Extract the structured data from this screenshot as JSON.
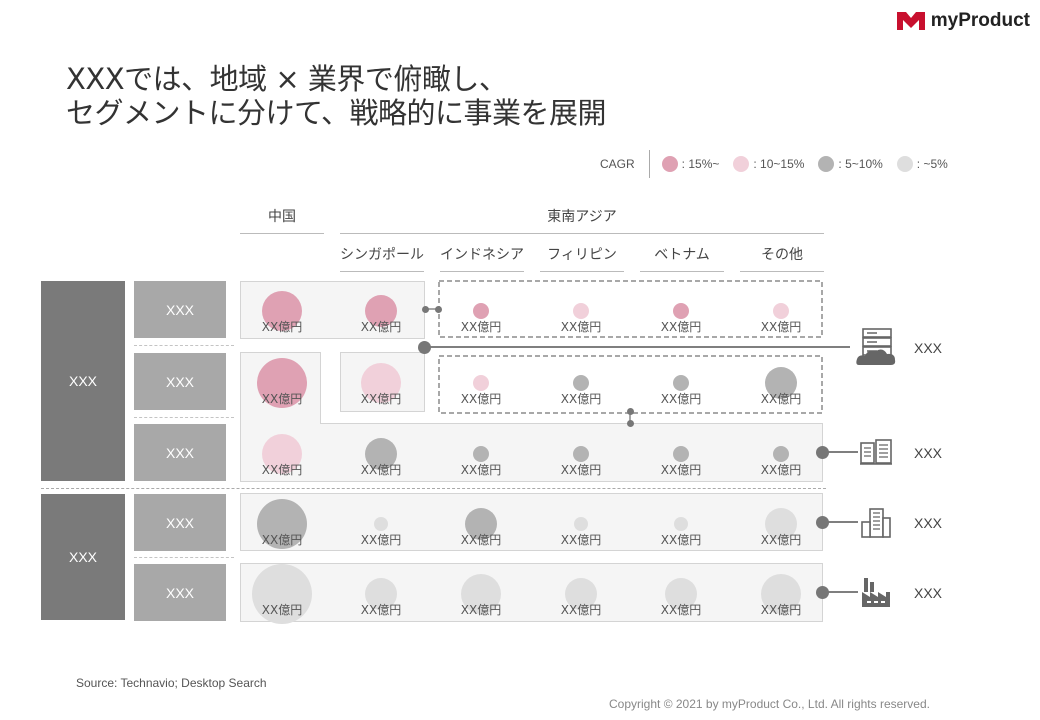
{
  "brand": {
    "name": "myProduct",
    "color": "#c8102e"
  },
  "title": {
    "line1": "XXXでは、地域 × 業界で俯瞰し、",
    "line2": "セグメントに分けて、戦略的に事業を展開"
  },
  "legend": {
    "label": "CAGR",
    "items": [
      {
        "text": ": 15%~",
        "color": "#dfa1b3"
      },
      {
        "text": ": 10~15%",
        "color": "#f1d0da"
      },
      {
        "text": ": 5~10%",
        "color": "#b3b3b3"
      },
      {
        "text": ": ~5%",
        "color": "#dedede"
      }
    ]
  },
  "headers": {
    "china": "中国",
    "sea": "東南アジア",
    "countries": [
      "シンガポール",
      "インドネシア",
      "フィリピン",
      "ベトナム",
      "その他"
    ]
  },
  "groups": [
    {
      "label": "XXX"
    },
    {
      "label": "XXX"
    }
  ],
  "rows": [
    {
      "label": "XXX",
      "cells": [
        {
          "text": "XX億円",
          "size": "L",
          "tier": "15%~"
        },
        {
          "text": "XX億円",
          "size": "M",
          "tier": "15%~"
        },
        {
          "text": "XX億円",
          "size": "S",
          "tier": "15%~"
        },
        {
          "text": "XX億円",
          "size": "S",
          "tier": "10~15%"
        },
        {
          "text": "XX億円",
          "size": "S",
          "tier": "15%~"
        },
        {
          "text": "XX億円",
          "size": "S",
          "tier": "10~15%"
        }
      ]
    },
    {
      "label": "XXX",
      "cells": [
        {
          "text": "XX億円",
          "size": "XL",
          "tier": "15%~"
        },
        {
          "text": "XX億円",
          "size": "L",
          "tier": "10~15%"
        },
        {
          "text": "XX億円",
          "size": "S",
          "tier": "10~15%"
        },
        {
          "text": "XX億円",
          "size": "S",
          "tier": "5~10%"
        },
        {
          "text": "XX億円",
          "size": "S",
          "tier": "5~10%"
        },
        {
          "text": "XX億円",
          "size": "M",
          "tier": "5~10%"
        }
      ]
    },
    {
      "label": "XXX",
      "cells": [
        {
          "text": "XX億円",
          "size": "L",
          "tier": "10~15%"
        },
        {
          "text": "XX億円",
          "size": "M",
          "tier": "5~10%"
        },
        {
          "text": "XX億円",
          "size": "S",
          "tier": "5~10%"
        },
        {
          "text": "XX億円",
          "size": "S",
          "tier": "5~10%"
        },
        {
          "text": "XX億円",
          "size": "S",
          "tier": "5~10%"
        },
        {
          "text": "XX億円",
          "size": "S",
          "tier": "5~10%"
        }
      ]
    },
    {
      "label": "XXX",
      "cells": [
        {
          "text": "XX億円",
          "size": "XL",
          "tier": "5~10%"
        },
        {
          "text": "XX億円",
          "size": "XS",
          "tier": "~5%"
        },
        {
          "text": "XX億円",
          "size": "M",
          "tier": "5~10%"
        },
        {
          "text": "XX億円",
          "size": "XS",
          "tier": "~5%"
        },
        {
          "text": "XX億円",
          "size": "XS",
          "tier": "~5%"
        },
        {
          "text": "XX億円",
          "size": "M",
          "tier": "~5%"
        }
      ]
    },
    {
      "label": "XXX",
      "cells": [
        {
          "text": "XX億円",
          "size": "XXL",
          "tier": "~5%"
        },
        {
          "text": "XX億円",
          "size": "M",
          "tier": "~5%"
        },
        {
          "text": "XX億円",
          "size": "L",
          "tier": "~5%"
        },
        {
          "text": "XX億円",
          "size": "M",
          "tier": "~5%"
        },
        {
          "text": "XX億円",
          "size": "M",
          "tier": "~5%"
        },
        {
          "text": "XX億円",
          "size": "L",
          "tier": "~5%"
        }
      ]
    }
  ],
  "targets": [
    {
      "label": "XXX",
      "icon": "cloud-server-icon"
    },
    {
      "label": "XXX",
      "icon": "office-building-icon"
    },
    {
      "label": "XXX",
      "icon": "tall-building-icon"
    },
    {
      "label": "XXX",
      "icon": "factory-icon"
    }
  ],
  "source": "Source: Technavio;  Desktop Search",
  "copyright": "Copyright © 2021 by myProduct Co., Ltd.  All rights reserved."
}
